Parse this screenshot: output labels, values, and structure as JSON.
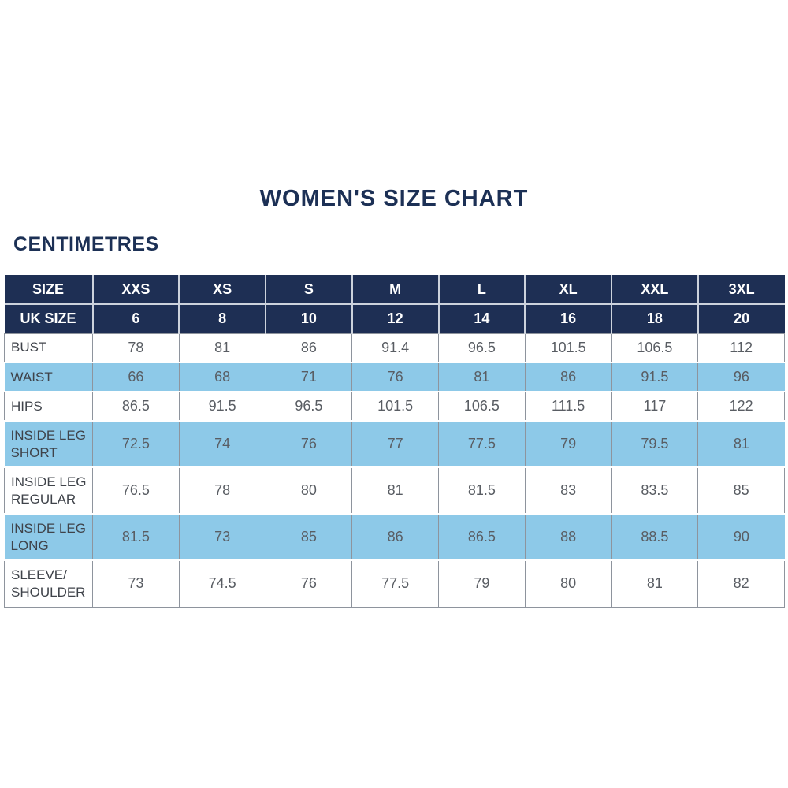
{
  "page": {
    "title": "WOMEN'S SIZE CHART",
    "unit_label": "CENTIMETRES"
  },
  "colors": {
    "navy_header": "#1e2f54",
    "title_text": "#1c3055",
    "highlight_blue": "#8dc9e8",
    "grid_line": "#8e949d",
    "value_text": "#595d63",
    "header_text": "#ffffff"
  },
  "chart_data": {
    "type": "table",
    "title": "WOMEN'S SIZE CHART",
    "unit": "CENTIMETRES",
    "columns": [
      "SIZE",
      "XXS",
      "XS",
      "S",
      "M",
      "L",
      "XL",
      "XXL",
      "3XL"
    ],
    "uk_size_row": {
      "label": "UK SIZE",
      "values": [
        6,
        8,
        10,
        12,
        14,
        16,
        18,
        20
      ]
    },
    "rows": [
      {
        "label": "BUST",
        "highlight": false,
        "values": [
          78,
          81,
          86,
          91.4,
          96.5,
          101.5,
          106.5,
          112
        ]
      },
      {
        "label": "WAIST",
        "highlight": true,
        "values": [
          66,
          68,
          71,
          76,
          81,
          86,
          91.5,
          96
        ]
      },
      {
        "label": "HIPS",
        "highlight": false,
        "values": [
          86.5,
          91.5,
          96.5,
          101.5,
          106.5,
          111.5,
          117,
          122
        ]
      },
      {
        "label": "INSIDE LEG SHORT",
        "highlight": true,
        "values": [
          72.5,
          74,
          76,
          77,
          77.5,
          79,
          79.5,
          81
        ]
      },
      {
        "label": "INSIDE LEG REGULAR",
        "highlight": false,
        "values": [
          76.5,
          78,
          80,
          81,
          81.5,
          83,
          83.5,
          85
        ]
      },
      {
        "label": "INSIDE LEG LONG",
        "highlight": true,
        "values": [
          81.5,
          73,
          85,
          86,
          86.5,
          88,
          88.5,
          90
        ]
      },
      {
        "label": "SLEEVE/ SHOULDER",
        "highlight": false,
        "values": [
          73,
          74.5,
          76,
          77.5,
          79,
          80,
          81,
          82
        ]
      }
    ]
  }
}
